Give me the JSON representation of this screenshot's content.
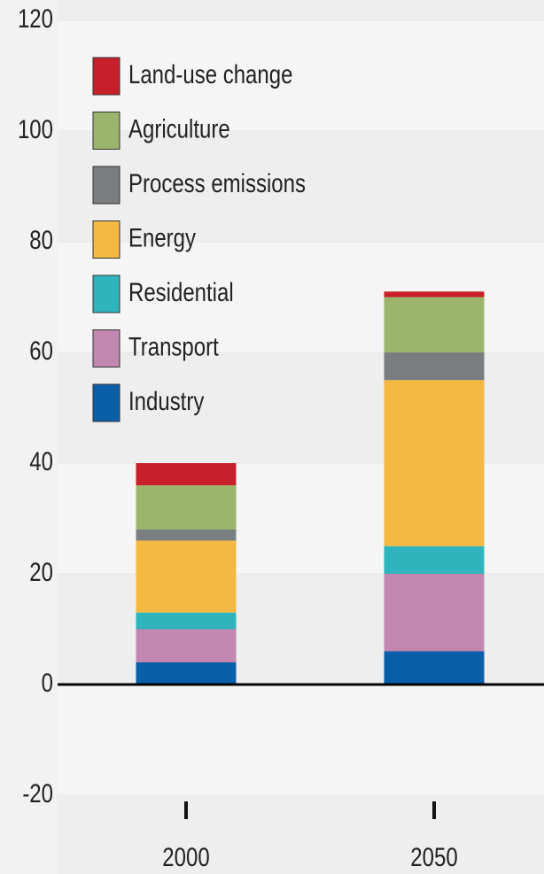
{
  "chart_data": {
    "type": "stacked_bar",
    "categories": [
      "2000",
      "2050"
    ],
    "series": [
      {
        "name": "Industry",
        "color": "#0b5ea8",
        "values": [
          4,
          6
        ]
      },
      {
        "name": "Transport",
        "color": "#c187b0",
        "values": [
          6,
          14
        ]
      },
      {
        "name": "Residential",
        "color": "#2fb4bd",
        "values": [
          3,
          5
        ]
      },
      {
        "name": "Energy",
        "color": "#f4b942",
        "values": [
          13,
          30
        ]
      },
      {
        "name": "Process emissions",
        "color": "#7b7e81",
        "values": [
          2,
          5
        ]
      },
      {
        "name": "Agriculture",
        "color": "#9cb56c",
        "values": [
          8,
          10
        ]
      },
      {
        "name": "Land-use change",
        "color": "#c8202b",
        "values": [
          4,
          1
        ]
      }
    ],
    "ylim": [
      -20,
      120
    ],
    "yticks": [
      -20,
      0,
      20,
      40,
      60,
      80,
      100,
      120
    ]
  }
}
